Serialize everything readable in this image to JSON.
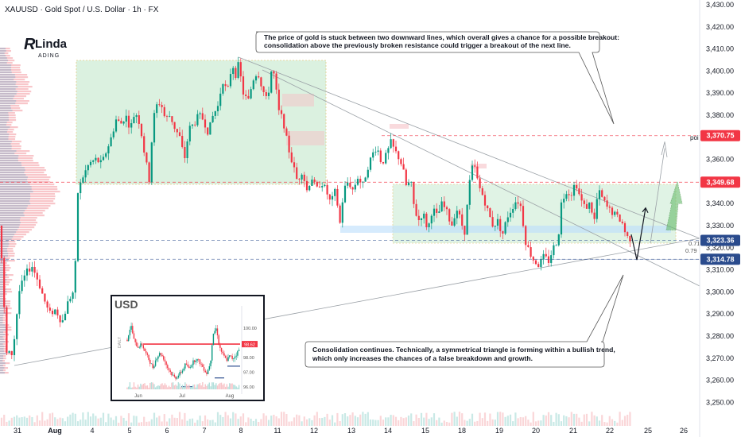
{
  "header": {
    "symbol_line": "XAUUSD · Gold Spot / U.S. Dollar · 1h · FX"
  },
  "logo": {
    "text_top": "Linda",
    "text_bottom": "ADING"
  },
  "callouts": {
    "top": [
      "The price of gold is stuck between two downward lines, which overall gives a chance for a possible breakout:",
      "consolidation above the previously broken resistance could trigger a breakout of the next line."
    ],
    "bottom": [
      "Consolidation continues. Technically, a symmetrical triangle is forming within a bullish trend,",
      "which only increases the chances of a false breakdown and growth."
    ]
  },
  "markers": {
    "poi": "poi",
    "fib1": "0.71",
    "fib2": "0.79"
  },
  "colors": {
    "up": "#089981",
    "down": "#f23645",
    "zone_green": "#c8ebd0",
    "zone_blue": "#bbdefb",
    "badge_red": "#f23645",
    "badge_blue": "#2a4b8d",
    "arrow_green": "#66bb6a"
  },
  "chart_data": {
    "type": "candlestick",
    "title": "XAUUSD · Gold Spot / U.S. Dollar · 1h · FX",
    "y_axis": {
      "range": [
        3245,
        3432
      ],
      "ticks": [
        "3,430.00",
        "3,420.00",
        "3,410.00",
        "3,400.00",
        "3,390.00",
        "3,380.00",
        "3,370.00",
        "3,360.00",
        "3,350.00",
        "3,340.00",
        "3,330.00",
        "3,320.00",
        "3,310.00",
        "3,300.00",
        "3,290.00",
        "3,280.00",
        "3,270.00",
        "3,260.00",
        "3,250.00"
      ]
    },
    "x_axis": {
      "ticks": [
        "31",
        "Aug",
        "4",
        "5",
        "6",
        "7",
        "8",
        "11",
        "12",
        "13",
        "14",
        "15",
        "18",
        "19",
        "20",
        "21",
        "22",
        "25",
        "26"
      ]
    },
    "price_labels": [
      {
        "value": 3370.75,
        "text": "3,370.75",
        "color": "#f23645"
      },
      {
        "value": 3349.68,
        "text": "3,349.68",
        "color": "#f23645"
      },
      {
        "value": 3323.36,
        "text": "3,323.36",
        "color": "#2a4b8d"
      },
      {
        "value": 3314.78,
        "text": "3,314.78",
        "color": "#2a4b8d"
      }
    ],
    "levels": [
      3370.75,
      3349.68,
      3323.36,
      3314.78
    ],
    "path": [
      [
        0,
        3330
      ],
      [
        8,
        3272
      ],
      [
        16,
        3272
      ],
      [
        24,
        3300
      ],
      [
        32,
        3308
      ],
      [
        40,
        3312
      ],
      [
        48,
        3305
      ],
      [
        56,
        3296
      ],
      [
        62,
        3290
      ],
      [
        70,
        3292
      ],
      [
        78,
        3286
      ],
      [
        86,
        3296
      ],
      [
        92,
        3300
      ],
      [
        96,
        3318
      ],
      [
        98,
        3345
      ],
      [
        104,
        3352
      ],
      [
        112,
        3358
      ],
      [
        120,
        3360
      ],
      [
        128,
        3358
      ],
      [
        134,
        3364
      ],
      [
        140,
        3370
      ],
      [
        146,
        3378
      ],
      [
        152,
        3376
      ],
      [
        158,
        3380
      ],
      [
        164,
        3374
      ],
      [
        170,
        3382
      ],
      [
        176,
        3376
      ],
      [
        182,
        3362
      ],
      [
        188,
        3350
      ],
      [
        192,
        3376
      ],
      [
        196,
        3384
      ],
      [
        202,
        3386
      ],
      [
        208,
        3378
      ],
      [
        214,
        3380
      ],
      [
        220,
        3374
      ],
      [
        226,
        3370
      ],
      [
        232,
        3360
      ],
      [
        238,
        3374
      ],
      [
        244,
        3376
      ],
      [
        250,
        3380
      ],
      [
        256,
        3378
      ],
      [
        262,
        3372
      ],
      [
        268,
        3380
      ],
      [
        274,
        3384
      ],
      [
        280,
        3396
      ],
      [
        286,
        3390
      ],
      [
        292,
        3404
      ],
      [
        296,
        3398
      ],
      [
        300,
        3403
      ],
      [
        306,
        3390
      ],
      [
        312,
        3386
      ],
      [
        318,
        3396
      ],
      [
        324,
        3400
      ],
      [
        330,
        3392
      ],
      [
        336,
        3386
      ],
      [
        342,
        3402
      ],
      [
        346,
        3396
      ],
      [
        350,
        3382
      ],
      [
        356,
        3378
      ],
      [
        362,
        3366
      ],
      [
        368,
        3358
      ],
      [
        374,
        3350
      ],
      [
        380,
        3355
      ],
      [
        386,
        3346
      ],
      [
        392,
        3352
      ],
      [
        398,
        3346
      ],
      [
        404,
        3350
      ],
      [
        410,
        3346
      ],
      [
        416,
        3340
      ],
      [
        422,
        3346
      ],
      [
        428,
        3330
      ],
      [
        432,
        3346
      ],
      [
        438,
        3350
      ],
      [
        444,
        3346
      ],
      [
        450,
        3352
      ],
      [
        456,
        3348
      ],
      [
        462,
        3356
      ],
      [
        468,
        3362
      ],
      [
        474,
        3366
      ],
      [
        480,
        3358
      ],
      [
        486,
        3362
      ],
      [
        492,
        3368
      ],
      [
        496,
        3364
      ],
      [
        500,
        3362
      ],
      [
        506,
        3357
      ],
      [
        512,
        3346
      ],
      [
        516,
        3352
      ],
      [
        520,
        3340
      ],
      [
        526,
        3332
      ],
      [
        532,
        3336
      ],
      [
        538,
        3328
      ],
      [
        544,
        3338
      ],
      [
        550,
        3334
      ],
      [
        556,
        3340
      ],
      [
        562,
        3336
      ],
      [
        568,
        3330
      ],
      [
        574,
        3338
      ],
      [
        580,
        3332
      ],
      [
        584,
        3326
      ],
      [
        588,
        3340
      ],
      [
        592,
        3354
      ],
      [
        596,
        3358
      ],
      [
        602,
        3348
      ],
      [
        608,
        3343
      ],
      [
        614,
        3336
      ],
      [
        620,
        3330
      ],
      [
        626,
        3332
      ],
      [
        632,
        3326
      ],
      [
        638,
        3334
      ],
      [
        644,
        3338
      ],
      [
        650,
        3342
      ],
      [
        656,
        3338
      ],
      [
        660,
        3324
      ],
      [
        666,
        3318
      ],
      [
        672,
        3314
      ],
      [
        678,
        3312
      ],
      [
        684,
        3316
      ],
      [
        690,
        3314
      ],
      [
        696,
        3320
      ],
      [
        702,
        3324
      ],
      [
        706,
        3340
      ],
      [
        712,
        3346
      ],
      [
        718,
        3344
      ],
      [
        724,
        3350
      ],
      [
        730,
        3342
      ],
      [
        736,
        3338
      ],
      [
        742,
        3340
      ],
      [
        748,
        3332
      ],
      [
        752,
        3346
      ],
      [
        758,
        3342
      ],
      [
        764,
        3338
      ],
      [
        770,
        3336
      ],
      [
        776,
        3334
      ],
      [
        782,
        3332
      ],
      [
        788,
        3325
      ],
      [
        794,
        3324
      ]
    ],
    "projection": [
      [
        794,
        3326
      ],
      [
        801,
        3314.5
      ],
      [
        812,
        3338
      ]
    ],
    "annotations": {
      "poi": "poi",
      "fib": [
        "0.71",
        "0.79"
      ]
    }
  },
  "inset": {
    "title": "USD",
    "vertical_label": "DAILY",
    "chart_data": {
      "type": "candlestick",
      "title": "USD",
      "y_range": [
        95.5,
        101.5
      ],
      "y_ticks": [
        "100.00",
        "99.00",
        "98.00",
        "97.00",
        "96.00"
      ],
      "x_ticks": [
        "Jun",
        "Jul",
        "Aug"
      ],
      "label_value": "98.62",
      "path": [
        [
          0,
          99.2
        ],
        [
          6,
          100.2
        ],
        [
          12,
          99.0
        ],
        [
          18,
          98.7
        ],
        [
          24,
          98.9
        ],
        [
          30,
          98.3
        ],
        [
          36,
          97.8
        ],
        [
          42,
          97.3
        ],
        [
          48,
          98.0
        ],
        [
          54,
          98.3
        ],
        [
          60,
          97.9
        ],
        [
          66,
          97.3
        ],
        [
          72,
          96.9
        ],
        [
          78,
          96.6
        ],
        [
          84,
          96.8
        ],
        [
          90,
          97.1
        ],
        [
          96,
          97.6
        ],
        [
          100,
          97.2
        ],
        [
          106,
          97.6
        ],
        [
          112,
          97.9
        ],
        [
          118,
          97.7
        ],
        [
          124,
          97.3
        ],
        [
          130,
          96.9
        ],
        [
          136,
          97.7
        ],
        [
          140,
          99.6
        ],
        [
          146,
          100.0
        ],
        [
          150,
          98.8
        ],
        [
          156,
          98.2
        ],
        [
          162,
          97.8
        ],
        [
          168,
          98.1
        ],
        [
          172,
          97.9
        ],
        [
          178,
          98.2
        ],
        [
          184,
          98.6
        ]
      ]
    }
  },
  "axis_badges": [
    "3,370.75",
    "3,349.68",
    "3,323.36",
    "3,314.78"
  ]
}
